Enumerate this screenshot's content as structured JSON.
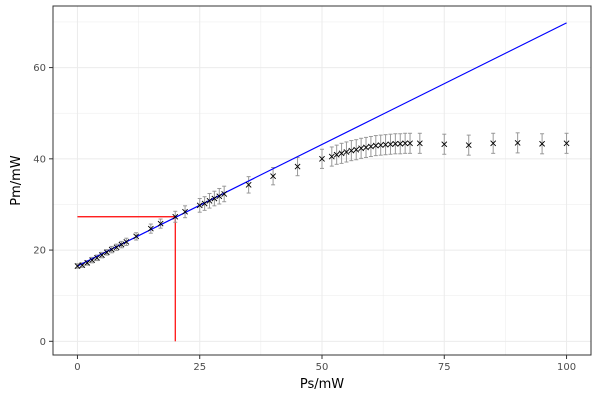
{
  "chart_data": {
    "type": "scatter",
    "xlabel": "Ps/mW",
    "ylabel": "Pm/mW",
    "xlim": [
      -5,
      105
    ],
    "ylim": [
      -3,
      73.5
    ],
    "x_ticks": [
      0,
      25,
      50,
      75,
      100
    ],
    "y_ticks": [
      0,
      20,
      40,
      60
    ],
    "x_tick_labels": [
      "0",
      "25",
      "50",
      "75",
      "100"
    ],
    "y_tick_labels": [
      "0",
      "20",
      "40",
      "60"
    ],
    "grid": true,
    "legend": "none",
    "colors": {
      "points": "#000000",
      "error_bars": "#999999",
      "fit_line": "#0000ff",
      "marker_lines": "#ff0000",
      "panel_border": "#333333",
      "grid": "#ebebeb"
    },
    "measurements": {
      "marker": "x",
      "x": [
        0,
        1,
        2,
        3,
        4,
        5,
        6,
        7,
        8,
        9,
        10,
        12,
        15,
        17,
        20,
        22,
        25,
        26,
        27,
        28,
        29,
        30,
        35,
        40,
        45,
        50,
        52,
        53,
        54,
        55,
        56,
        57,
        58,
        59,
        60,
        61,
        62,
        63,
        64,
        65,
        66,
        67,
        68,
        70,
        75,
        80,
        85,
        90,
        95,
        100
      ],
      "y": [
        16.5,
        16.7,
        17.2,
        17.8,
        18.3,
        18.9,
        19.5,
        20.1,
        20.6,
        21.2,
        21.8,
        23.0,
        24.7,
        25.8,
        27.3,
        28.4,
        29.8,
        30.2,
        30.8,
        31.3,
        31.8,
        32.3,
        34.3,
        36.2,
        38.3,
        40.0,
        40.5,
        40.9,
        41.2,
        41.5,
        41.8,
        42.0,
        42.3,
        42.5,
        42.7,
        42.9,
        43.0,
        43.1,
        43.2,
        43.3,
        43.3,
        43.4,
        43.4,
        43.4,
        43.2,
        43.0,
        43.4,
        43.5,
        43.3,
        43.4
      ],
      "error": [
        0.5,
        0.5,
        0.5,
        0.6,
        0.6,
        0.6,
        0.6,
        0.7,
        0.7,
        0.7,
        0.8,
        0.8,
        1.0,
        1.0,
        1.2,
        1.3,
        1.5,
        1.5,
        1.6,
        1.6,
        1.7,
        1.7,
        1.8,
        1.9,
        2.0,
        2.1,
        2.1,
        2.1,
        2.2,
        2.2,
        2.2,
        2.2,
        2.2,
        2.2,
        2.2,
        2.2,
        2.2,
        2.2,
        2.2,
        2.2,
        2.2,
        2.2,
        2.2,
        2.2,
        2.2,
        2.2,
        2.2,
        2.2,
        2.2,
        2.2
      ]
    },
    "fit_line": {
      "x": [
        0,
        100
      ],
      "y": [
        16.5,
        69.8
      ]
    },
    "marker_lines": [
      {
        "x": [
          0,
          20
        ],
        "y": [
          27.3,
          27.3
        ]
      },
      {
        "x": [
          20,
          20
        ],
        "y": [
          27.3,
          0
        ]
      }
    ]
  }
}
